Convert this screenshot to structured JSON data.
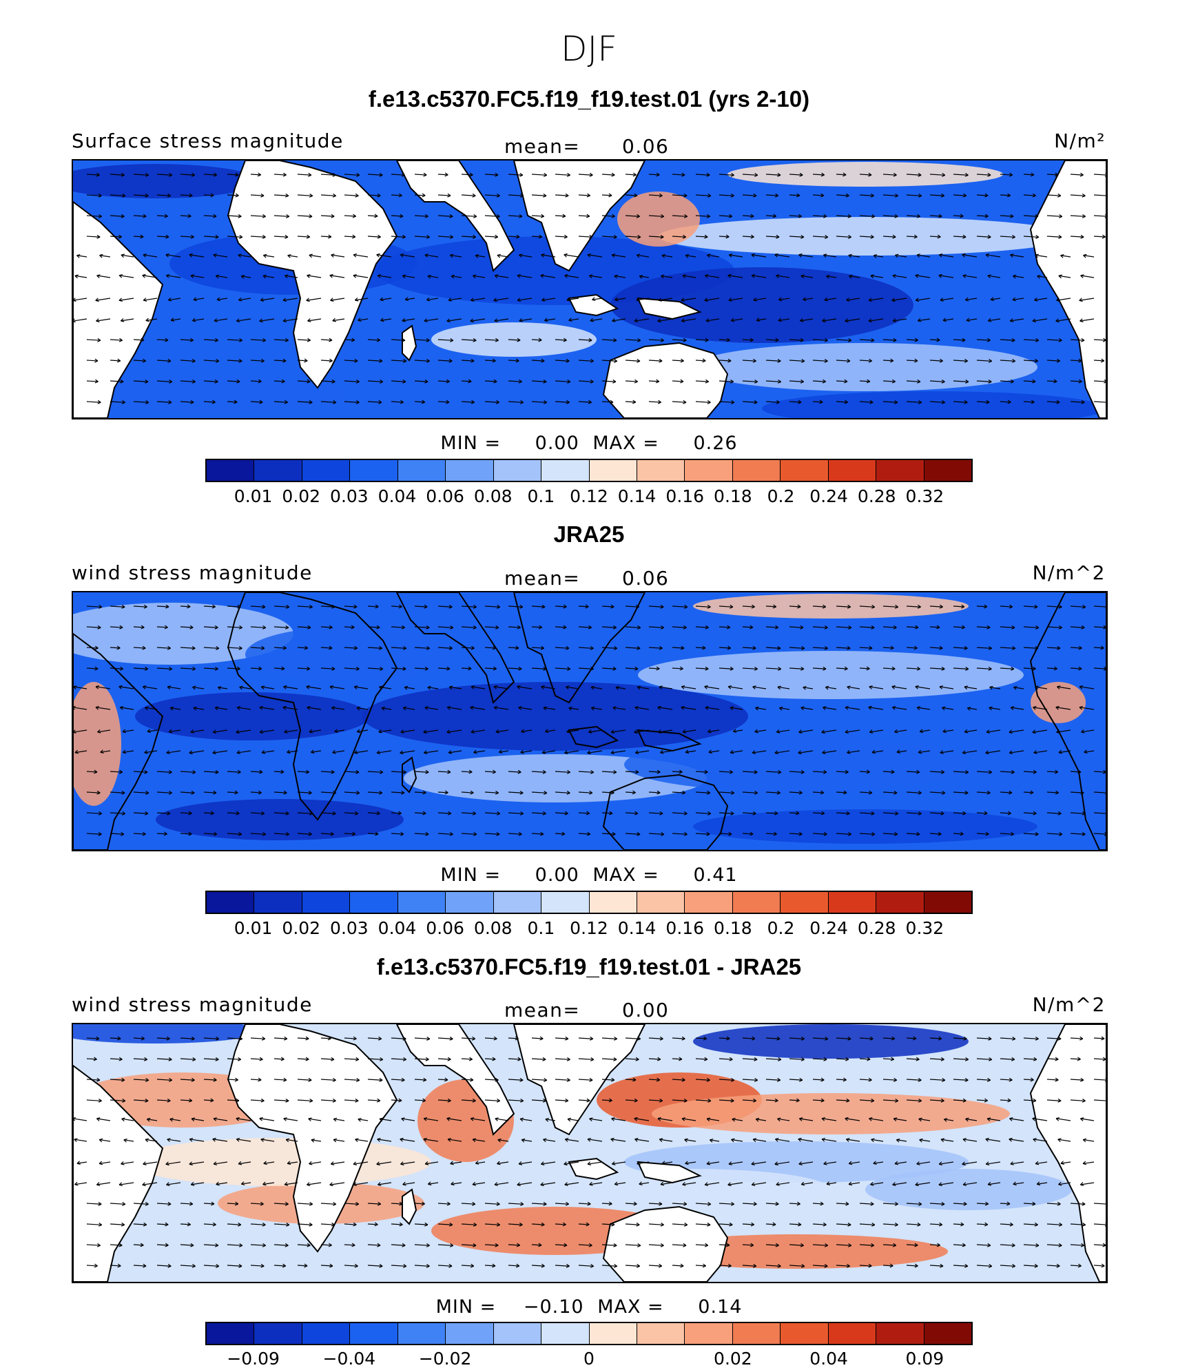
{
  "figure": {
    "season": "DJF",
    "palette_main": [
      "#08179b",
      "#0c2fc0",
      "#0d45dd",
      "#1c62f0",
      "#3f82f6",
      "#6fa2f8",
      "#a3c3fa",
      "#d3e4fb",
      "#fde6d4",
      "#fbc4a6",
      "#f7a07b",
      "#f17c52",
      "#e85a2e",
      "#d9391b",
      "#b01d10",
      "#820a05"
    ],
    "land_color": "#ffffff",
    "coast_color": "#000000"
  },
  "panels": [
    {
      "title": "f.e13.c5370.FC5.f19_f19.test.01 (yrs 2-10)",
      "left_label": "Surface stress magnitude",
      "mean_label": "mean=",
      "mean_value": "0.06",
      "units": "N/m²",
      "min_label": "MIN =",
      "min_value": "0.00",
      "max_label": "MAX =",
      "max_value": "0.26",
      "colorbar_ticks": [
        "0.01",
        "0.02",
        "0.03",
        "0.04",
        "0.06",
        "0.08",
        "0.1",
        "0.12",
        "0.14",
        "0.16",
        "0.18",
        "0.2",
        "0.24",
        "0.28",
        "0.32"
      ]
    },
    {
      "title": "JRA25",
      "left_label": "wind stress magnitude",
      "mean_label": "mean=",
      "mean_value": "0.06",
      "units": "N/m^2",
      "min_label": "MIN =",
      "min_value": "0.00",
      "max_label": "MAX =",
      "max_value": "0.41",
      "colorbar_ticks": [
        "0.01",
        "0.02",
        "0.03",
        "0.04",
        "0.06",
        "0.08",
        "0.1",
        "0.12",
        "0.14",
        "0.16",
        "0.18",
        "0.2",
        "0.24",
        "0.28",
        "0.32"
      ]
    },
    {
      "title": "f.e13.c5370.FC5.f19_f19.test.01 - JRA25",
      "left_label": "wind stress magnitude",
      "mean_label": "mean=",
      "mean_value": "0.00",
      "units": "N/m^2",
      "min_label": "MIN =",
      "min_value": "−0.10",
      "max_label": "MAX =",
      "max_value": "0.14",
      "colorbar_ticks": [
        "−0.09",
        "−0.04",
        "−0.02",
        "0",
        "0.02",
        "0.04",
        "0.09"
      ]
    }
  ]
}
